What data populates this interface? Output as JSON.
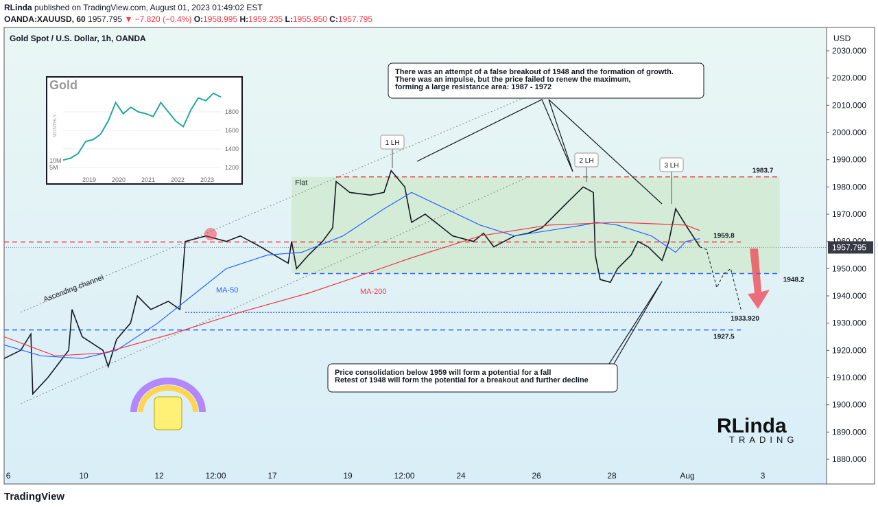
{
  "header": {
    "publisher": "RLinda",
    "published": "published on TradingView.com, August 01, 2023 01:49:02 EST",
    "symbol": "OANDA:XAUUSD, 60",
    "last": "1957.795",
    "change": "▼ −7.820 (−0.4%)",
    "ohlc": [
      {
        "key": "O:",
        "value": "1958.995"
      },
      {
        "key": "H:",
        "value": "1959.235"
      },
      {
        "key": "L:",
        "value": "1955.950"
      },
      {
        "key": "C:",
        "value": "1957.795"
      }
    ]
  },
  "chart_data": {
    "type": "line",
    "title": "Gold Spot / U.S. Dollar, 1h, OANDA",
    "currency": "USD",
    "x": [
      -0.11,
      0.33,
      0.6,
      0.65,
      1.05,
      1.6,
      1.69,
      1.96,
      2.51,
      2.65,
      2.87,
      3.24,
      3.42,
      3.78,
      4.24,
      4.55,
      4.69,
      5.24,
      5.78,
      6.15,
      6.69,
      7.05,
      7.42,
      7.51,
      7.64,
      7.96,
      8.33,
      8.6,
      8.69,
      9.05,
      9.6,
      9.96,
      10.15,
      10.51,
      10.69,
      11.05,
      11.42,
      11.78,
      12.33,
      12.6,
      12.87,
      13.42,
      13.78,
      14.15,
      14.51,
      14.87,
      15.24,
      15.51,
      15.56,
      15.69,
      15.96,
      16.15,
      16.51,
      16.69,
      16.96,
      17.33,
      17.51,
      17.69,
      17.96,
      18.24,
      18.33
    ],
    "series": [
      {
        "color": "#131722",
        "values": [
          1917,
          1920,
          1926,
          1904,
          1910,
          1920,
          1935,
          1925,
          1920,
          1914,
          1924,
          1930,
          1940,
          1935,
          1938,
          1935,
          1960,
          1962,
          1960,
          1962,
          1958,
          1955,
          1952,
          1960,
          1950,
          1955,
          1960,
          1965,
          1982,
          1978,
          1977,
          1978,
          1986,
          1980,
          1967,
          1970,
          1966,
          1962,
          1960,
          1963,
          1958,
          1962,
          1963,
          1965,
          1970,
          1975,
          1980,
          1978,
          1955,
          1946,
          1945,
          1950,
          1955,
          1960,
          1958,
          1953,
          1960,
          1972,
          1966,
          1960,
          1958
        ]
      },
      {
        "name": "MA-50",
        "color": "#2962ff",
        "x": [
          -0.11,
          0.87,
          1.96,
          2.87,
          3.96,
          4.87,
          5.78,
          6.87,
          7.78,
          8.87,
          9.96,
          10.69,
          11.6,
          12.51,
          13.42,
          14.33,
          15.24,
          15.6,
          16.15,
          17.05,
          17.69,
          17.96,
          18.33
        ],
        "values": [
          1922,
          1918,
          1917,
          1920,
          1930,
          1940,
          1950,
          1955,
          1956,
          1962,
          1972,
          1978,
          1972,
          1966,
          1962,
          1964,
          1966,
          1967,
          1966,
          1962,
          1956,
          1960,
          1961
        ]
      },
      {
        "name": "MA-200",
        "color": "#f23645",
        "x": [
          -0.11,
          1.24,
          2.51,
          4.33,
          6.15,
          7.96,
          9.24,
          10.69,
          12.51,
          14.33,
          16.15,
          17.96,
          18.33
        ],
        "values": [
          1925,
          1918,
          1919,
          1926,
          1934,
          1941,
          1947,
          1954,
          1962,
          1966,
          1967,
          1966,
          1964
        ]
      }
    ],
    "projection": {
      "x": [
        18.33,
        18.51,
        18.78,
        18.96,
        19.15,
        19.42
      ],
      "values": [
        1958,
        1957,
        1943,
        1948,
        1950,
        1935
      ]
    },
    "channel": {
      "label": "Ascending channel",
      "x": [
        0.33,
        13.78
      ],
      "upper": [
        1934,
        2013.4
      ],
      "lower": [
        1900.4,
        1983.6
      ]
    },
    "zone": {
      "label": "Flat",
      "x": [
        7.51,
        20.45
      ],
      "y": [
        1948.3,
        1983.7
      ]
    },
    "levels": [
      {
        "value": 1983.7,
        "x": [
          8.69,
          20.45
        ],
        "color": "#f23645"
      },
      {
        "value": 1959.8,
        "x": [
          -0.11,
          19.42
        ],
        "color": "#f23645"
      },
      {
        "value": 1948.2,
        "x": [
          7.6,
          20.45
        ],
        "color": "#2962ff"
      },
      {
        "value": {
          "value": 1933.92,
          "label": "1933.920"
        },
        "x": [
          4.69,
          19.24
        ],
        "color": "#2962ff"
      },
      {
        "value": 1927.5,
        "x": [
          -0.11,
          19.42
        ],
        "color": "#2962ff"
      }
    ],
    "last_price": 1957.795,
    "lh_labels": [
      "1 LH",
      "2 LH",
      "3 LH"
    ],
    "annotations": [
      [
        "There was an attempt of a false breakout of 1948 and the formation of growth.",
        "There was an impulse, but the price failed to renew the maximum,",
        "forming a large resistance area: 1987 - 1972"
      ],
      [
        "Price consolidation below 1959 will form a potential for a fall",
        "Retest of 1948 will form the potential for a breakout and further decline"
      ]
    ],
    "xlim": [
      -0.11,
      21.69
    ],
    "xticks": [
      {
        "value": 0,
        "label": "6"
      },
      {
        "value": 2,
        "label": "10"
      },
      {
        "value": 4,
        "label": "12"
      },
      {
        "value": 5.5,
        "label": "12:00"
      },
      {
        "value": 7,
        "label": "17"
      },
      {
        "value": 9,
        "label": "19"
      },
      {
        "value": 10.5,
        "label": "12:00"
      },
      {
        "value": 12,
        "label": "24"
      },
      {
        "value": 14,
        "label": "26"
      },
      {
        "value": 16,
        "label": "28"
      },
      {
        "value": 18,
        "label": "Aug"
      },
      {
        "value": 20,
        "label": "3"
      }
    ],
    "ylim": [
      1870.93,
      2038.57
    ],
    "yticks": [
      {
        "value": 1880,
        "label": "1880.000"
      },
      {
        "value": 1890,
        "label": "1890.000"
      },
      {
        "value": 1900,
        "label": "1900.000"
      },
      {
        "value": 1910,
        "label": "1910.000"
      },
      {
        "value": 1920,
        "label": "1920.000"
      },
      {
        "value": 1930,
        "label": "1930.000"
      },
      {
        "value": 1940,
        "label": "1940.000"
      },
      {
        "value": 1950,
        "label": "1950.000"
      },
      {
        "value": 1960,
        "label": "1960.000"
      },
      {
        "value": 1970,
        "label": "1970.000"
      },
      {
        "value": 1980,
        "label": "1980.000"
      },
      {
        "value": 1990,
        "label": "1990.000"
      },
      {
        "value": 2000,
        "label": "2000.000"
      },
      {
        "value": 2010,
        "label": "2010.000"
      },
      {
        "value": 2020,
        "label": "2020.000"
      },
      {
        "value": 2030,
        "label": "2030.000"
      }
    ]
  },
  "inset": {
    "title": "Gold",
    "ylabel": "MONTHLY",
    "years": [
      "2019",
      "2020",
      "2021",
      "2022",
      "2023"
    ],
    "yticks": [
      1800,
      1600,
      1400,
      1200
    ],
    "ylim": [
      1118,
      2081
    ],
    "values": [
      1280,
      1300,
      1350,
      1480,
      1500,
      1560,
      1700,
      1900,
      1780,
      1850,
      1800,
      1780,
      1750,
      1900,
      1800,
      1700,
      1640,
      1820,
      1950,
      1920,
      2000,
      1960
    ],
    "volume_labels": [
      "10M",
      "5M"
    ]
  },
  "logo": {
    "name": "RLinda",
    "sub": "TRADING"
  },
  "footer": "TradingView"
}
